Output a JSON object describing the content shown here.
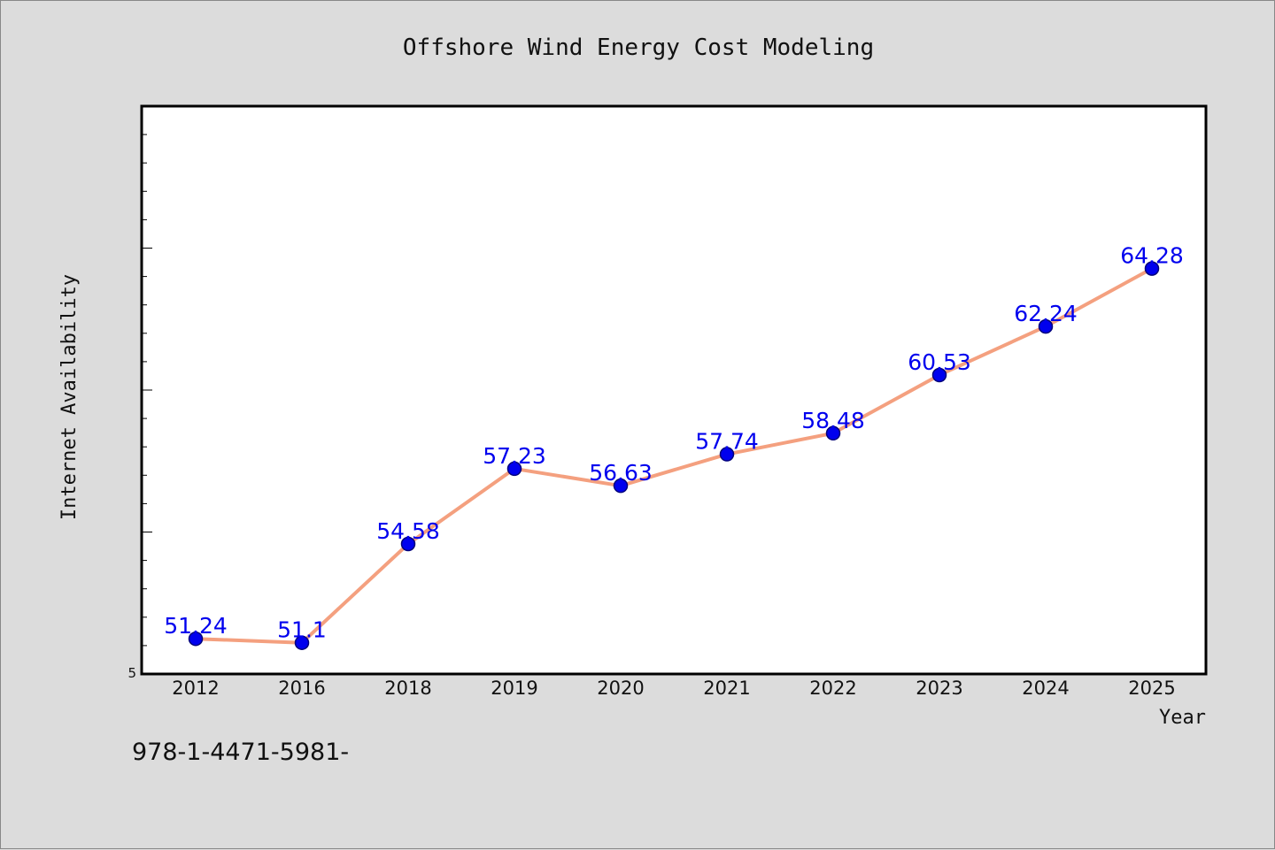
{
  "chart_data": {
    "type": "line",
    "title": "Offshore Wind Energy Cost Modeling",
    "xlabel": "Year",
    "ylabel": "Internet Availability",
    "categories": [
      "2012",
      "2016",
      "2018",
      "2019",
      "2020",
      "2021",
      "2022",
      "2023",
      "2024",
      "2025"
    ],
    "series": [
      {
        "values": [
          51.24,
          51.1,
          54.58,
          57.23,
          56.63,
          57.74,
          58.48,
          60.53,
          62.24,
          64.28
        ]
      }
    ],
    "data_labels": [
      "51.24",
      "51.1",
      "54.58",
      "57.23",
      "56.63",
      "57.74",
      "58.48",
      "60.53",
      "62.24",
      "64.28"
    ],
    "y_tick_labels": [
      "5"
    ],
    "ylim": [
      50,
      70
    ],
    "grid": false,
    "legend": "none",
    "colors": {
      "line": "#f4a07f",
      "marker": "#0000ee",
      "marker_edge": "#00007a",
      "label": "#0000ee",
      "background": "#dcdcdc",
      "plot_bg": "#ffffff"
    }
  },
  "footer": {
    "text": "978-1-4471-5981-"
  }
}
